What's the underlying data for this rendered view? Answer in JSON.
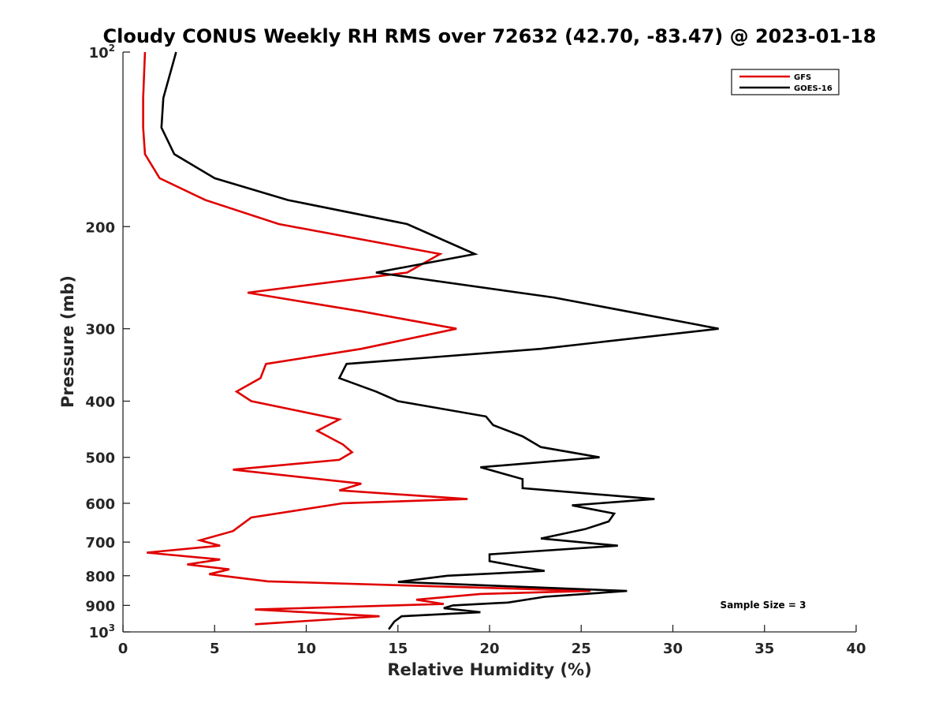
{
  "chart_data": {
    "type": "line",
    "title": "Cloudy CONUS Weekly RH RMS over 72632 (42.70, -83.47) @ 2023-01-18",
    "xlabel": "Relative Humidity (%)",
    "ylabel": "Pressure (mb)",
    "xlim": [
      0,
      40
    ],
    "ylim": [
      100,
      1000
    ],
    "y_scale": "log",
    "y_reversed": true,
    "x_ticks": [
      0,
      5,
      10,
      15,
      20,
      25,
      30,
      35,
      40
    ],
    "y_ticks": [
      {
        "value": 100,
        "base": "10",
        "exp": "2"
      },
      {
        "value": 200,
        "label": "200"
      },
      {
        "value": 300,
        "label": "300"
      },
      {
        "value": 400,
        "label": "400"
      },
      {
        "value": 500,
        "label": "500"
      },
      {
        "value": 600,
        "label": "600"
      },
      {
        "value": 700,
        "label": "700"
      },
      {
        "value": 800,
        "label": "800"
      },
      {
        "value": 900,
        "label": "900"
      },
      {
        "value": 1000,
        "base": "10",
        "exp": "3"
      }
    ],
    "grid": false,
    "legend_position": "top-right",
    "annotation": "Sample Size = 3",
    "series": [
      {
        "name": "GFS",
        "color": "#e00000",
        "x": [
          1.2,
          1.1,
          1.1,
          1.2,
          2.0,
          4.5,
          8.5,
          17.3,
          15.5,
          6.8,
          13.0,
          18.2,
          13.0,
          7.8,
          7.5,
          6.2,
          7.0,
          11.8,
          10.6,
          12.0,
          12.5,
          11.8,
          6.0,
          13.0,
          11.8,
          18.8,
          12.0,
          7.0,
          6.0,
          4.2,
          5.3,
          1.3,
          5.3,
          3.5,
          5.8,
          4.7,
          7.9,
          25.5,
          19.5,
          16.0,
          17.5,
          7.2,
          14.0,
          7.2
        ],
        "y": [
          100,
          120,
          135,
          150,
          165,
          180,
          198,
          223,
          240,
          260,
          280,
          300,
          325,
          345,
          365,
          385,
          400,
          430,
          450,
          475,
          490,
          505,
          525,
          555,
          570,
          590,
          600,
          635,
          670,
          695,
          710,
          730,
          750,
          765,
          780,
          795,
          818,
          850,
          860,
          880,
          895,
          915,
          940,
          970
        ]
      },
      {
        "name": "GOES-16",
        "color": "#000000",
        "x": [
          2.9,
          2.2,
          2.1,
          2.8,
          5.0,
          9.0,
          15.5,
          19.2,
          13.8,
          23.5,
          32.5,
          22.8,
          12.2,
          11.8,
          13.8,
          15.0,
          19.8,
          20.2,
          21.8,
          22.8,
          26.0,
          19.5,
          21.8,
          21.8,
          29.0,
          24.5,
          26.8,
          26.5,
          25.2,
          22.8,
          27.0,
          20.0,
          20.0,
          21.5,
          23.0,
          17.7,
          15.0,
          27.5,
          23.0,
          21.0,
          18.0,
          17.5,
          19.5,
          15.2,
          14.8,
          14.5
        ],
        "y": [
          100,
          120,
          135,
          150,
          165,
          180,
          198,
          223,
          240,
          265,
          300,
          325,
          345,
          365,
          385,
          400,
          425,
          440,
          460,
          480,
          500,
          520,
          545,
          565,
          590,
          605,
          625,
          645,
          665,
          690,
          710,
          735,
          755,
          770,
          785,
          800,
          820,
          850,
          870,
          890,
          900,
          910,
          925,
          940,
          960,
          990
        ]
      }
    ]
  }
}
